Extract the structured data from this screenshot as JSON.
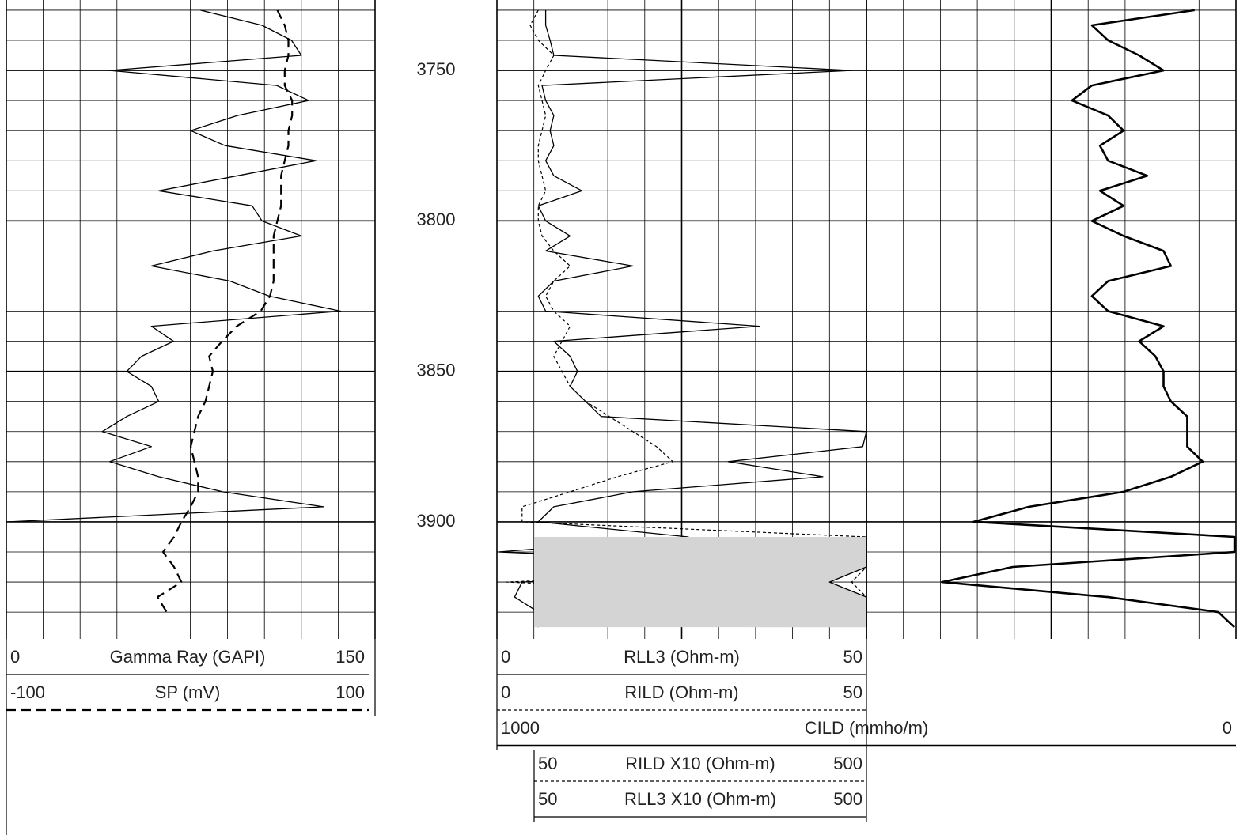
{
  "chart_data": {
    "type": "line",
    "y": [
      3730,
      3735,
      3740,
      3745,
      3750,
      3755,
      3760,
      3765,
      3770,
      3775,
      3780,
      3785,
      3790,
      3795,
      3800,
      3805,
      3810,
      3815,
      3820,
      3825,
      3830,
      3835,
      3840,
      3845,
      3850,
      3855,
      3860,
      3865,
      3870,
      3875,
      3880,
      3885,
      3890,
      3895,
      3900,
      3905,
      3910,
      3915,
      3920,
      3925,
      3930,
      3935
    ],
    "ylim": [
      3726.6,
      3938.9
    ],
    "yticks": [
      3750,
      3800,
      3850,
      3900
    ],
    "yminorticks": [
      3730,
      3740,
      3750,
      3760,
      3770,
      3780,
      3790,
      3800,
      3810,
      3820,
      3830,
      3840,
      3850,
      3860,
      3870,
      3880,
      3890,
      3900,
      3910,
      3920,
      3930
    ],
    "grid": true,
    "tracks": [
      {
        "series": [
          {
            "name": "Gamma Ray (GAPI)",
            "color": "#000000",
            "line": "solid",
            "xlim": [
              0,
              150
            ],
            "values": [
              79,
              104,
              116,
              120,
              42,
              110,
              123,
              94,
              75,
              89,
              126,
              94,
              62,
              100,
              104,
              120,
              84,
              59,
              91,
              107,
              136,
              59,
              68,
              55,
              49,
              59,
              62,
              49,
              39,
              59,
              42,
              62,
              88,
              129,
              1,
              null,
              null,
              null,
              null,
              null,
              null,
              null
            ]
          },
          {
            "name": "SP (mV)",
            "color": "#000000",
            "line": "dashed",
            "xlim": [
              -100,
              100
            ],
            "values": [
              47,
              51,
              53,
              53,
              51,
              51,
              55,
              55,
              53,
              53,
              51,
              49,
              49,
              49,
              47,
              45,
              45,
              45,
              45,
              43,
              38,
              25,
              17,
              10,
              12,
              10,
              8,
              4,
              2,
              0,
              2,
              4,
              4,
              0,
              -5,
              -9,
              -15,
              -9,
              -5,
              -18,
              -13,
              null
            ]
          }
        ]
      },
      {
        "series": [
          {
            "name": "RLL3 (Ohm-m)",
            "color": "#000000",
            "line": "solid",
            "xlim": [
              0,
              50
            ],
            "values": [
              6.6,
              6.6,
              7.2,
              7.7,
              48,
              6.1,
              6.6,
              7.7,
              7.2,
              7.7,
              6.6,
              7.7,
              11.5,
              5.6,
              6.6,
              9.9,
              6.6,
              18.4,
              7.7,
              5.6,
              6.6,
              35.5,
              7.7,
              9.9,
              10.9,
              9.9,
              12,
              14.1,
              50,
              49.5,
              31.3,
              44.1,
              18.4,
              7.7,
              5.6,
              25.9,
              0.2,
              50,
              3.4,
              2.4,
              5.6,
              5.6
            ]
          },
          {
            "name": "RILD (Ohm-m)",
            "color": "#000000",
            "line": "dotted",
            "xlim": [
              0,
              50
            ],
            "values": [
              5.6,
              4.5,
              5.6,
              7.7,
              6.6,
              5.6,
              6.1,
              6.6,
              6.1,
              5.6,
              5.6,
              6.1,
              6.6,
              5.6,
              5.6,
              6.1,
              7.7,
              9.9,
              7.7,
              6.6,
              7.7,
              9.9,
              8.8,
              7.7,
              8.8,
              9.9,
              12,
              15.2,
              18.4,
              21.6,
              23.8,
              16.3,
              9.9,
              3.4,
              3.4,
              50,
              50,
              50,
              1.3,
              50,
              50,
              50
            ]
          },
          {
            "name": "RILD X10 (Ohm-m)",
            "color": "#000000",
            "line": "dotted",
            "xlim": [
              50,
              500
            ],
            "values": [
              null,
              null,
              null,
              null,
              null,
              null,
              null,
              null,
              null,
              null,
              null,
              null,
              null,
              null,
              null,
              null,
              null,
              null,
              null,
              null,
              null,
              null,
              null,
              null,
              null,
              null,
              null,
              null,
              null,
              null,
              null,
              null,
              null,
              null,
              null,
              500,
              500,
              500,
              480,
              500,
              500,
              500
            ]
          },
          {
            "name": "RLL3 X10 (Ohm-m)",
            "color": "#000000",
            "line": "solid",
            "fill": "#d4d4d4",
            "xlim": [
              50,
              500
            ],
            "values": [
              null,
              null,
              null,
              null,
              null,
              null,
              null,
              null,
              null,
              null,
              null,
              null,
              null,
              null,
              null,
              null,
              null,
              null,
              null,
              null,
              null,
              null,
              null,
              null,
              null,
              null,
              null,
              null,
              null,
              null,
              null,
              null,
              null,
              null,
              null,
              500,
              500,
              500,
              450,
              500,
              500,
              500
            ]
          }
        ]
      },
      {
        "series": [
          {
            "name": "CILD (mmho/m)",
            "color": "#000000",
            "line": "thick",
            "xlim": [
              1000,
              0
            ],
            "values": [
              56,
              195,
              173,
              131,
              98,
              195,
              222,
              173,
              152,
              184,
              173,
              120,
              184,
              152,
              195,
              152,
              98,
              88,
              173,
              195,
              173,
              98,
              131,
              109,
              98,
              98,
              88,
              66,
              66,
              66,
              45,
              88,
              152,
              280,
              355,
              2,
              2,
              302,
              398,
              173,
              24,
              2
            ]
          }
        ]
      }
    ]
  }
}
